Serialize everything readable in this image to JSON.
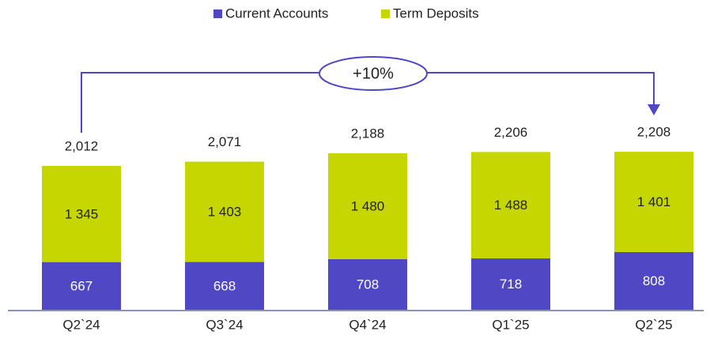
{
  "chart_data": {
    "type": "stacked_bar",
    "categories": [
      "Q2`24",
      "Q3`24",
      "Q4`24",
      "Q1`25",
      "Q2`25"
    ],
    "series": [
      {
        "name": "Current Accounts",
        "color": "#4f47c4",
        "values": [
          667,
          668,
          708,
          718,
          808
        ]
      },
      {
        "name": "Term Deposits",
        "color": "#c6d600",
        "values": [
          1345,
          1403,
          1480,
          1488,
          1401
        ],
        "value_labels": [
          "1 345",
          "1 403",
          "1 480",
          "1 488",
          "1 401"
        ]
      }
    ],
    "totals": [
      2012,
      2071,
      2188,
      2206,
      2208
    ],
    "total_labels": [
      "2,012",
      "2,071",
      "2,188",
      "2,206",
      "2,208"
    ],
    "annotation": "+10%"
  }
}
